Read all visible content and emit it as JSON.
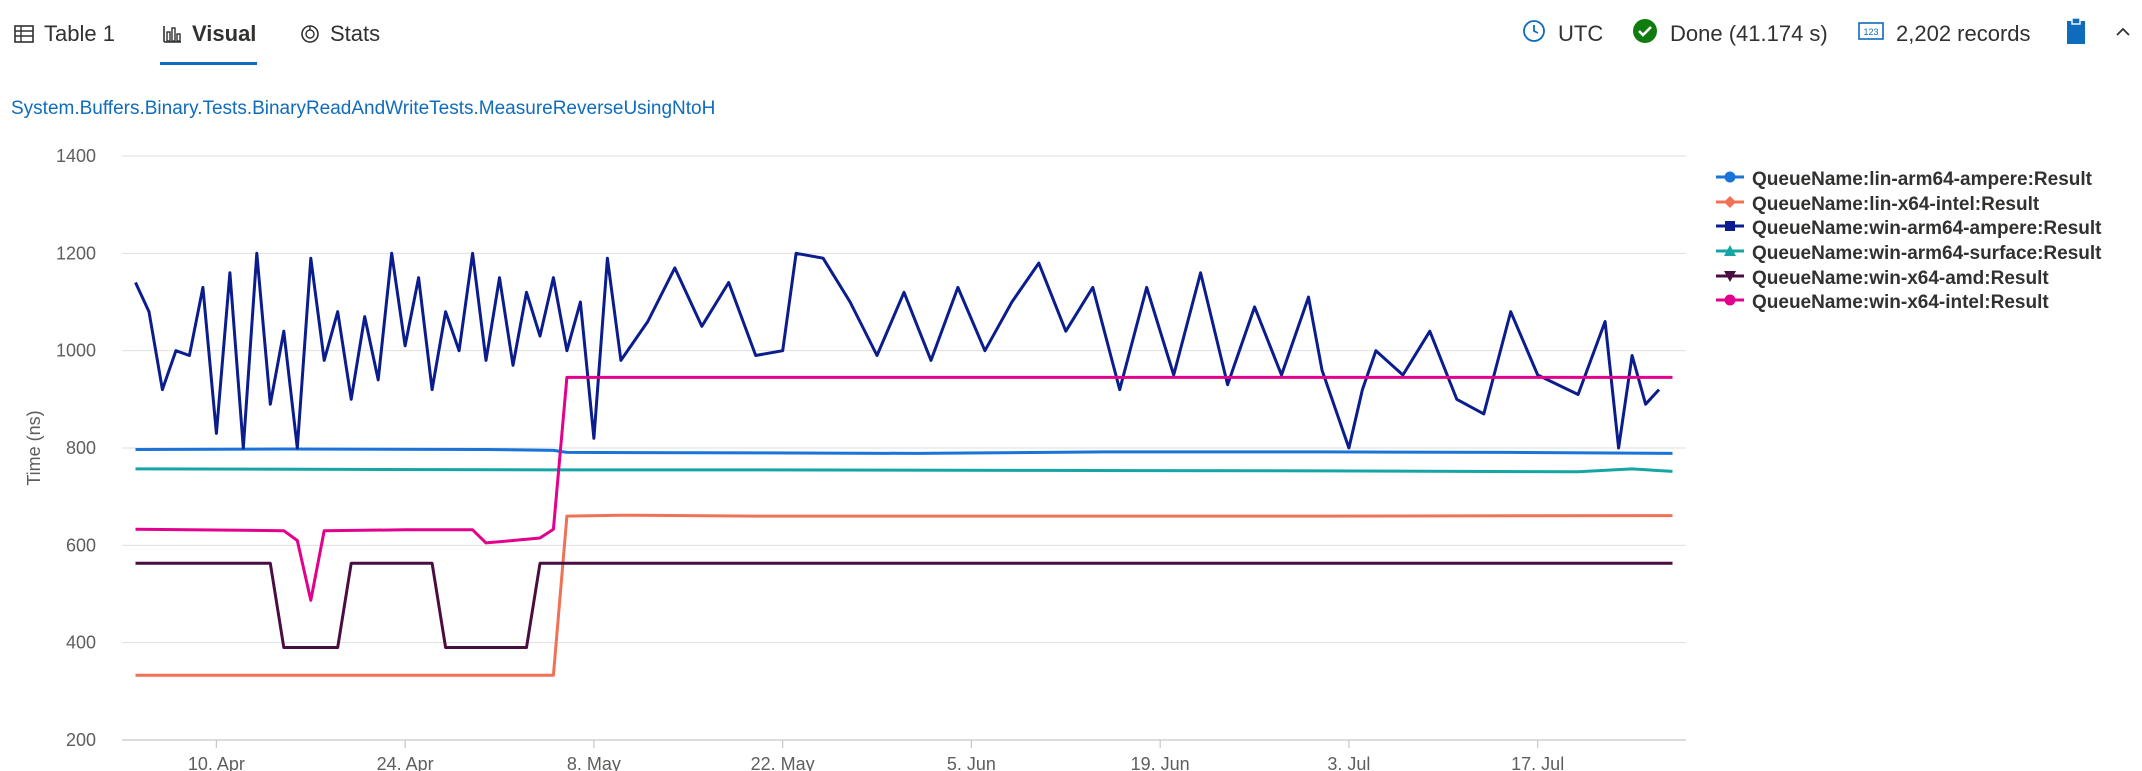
{
  "toolbar": {
    "tabs": [
      {
        "label": "Table 1",
        "icon": "table-icon",
        "active": false
      },
      {
        "label": "Visual",
        "icon": "chart-icon",
        "active": true
      },
      {
        "label": "Stats",
        "icon": "stats-icon",
        "active": false
      }
    ],
    "timezone": "UTC",
    "status": "Done (41.174 s)",
    "records": "2,202 records",
    "accent_color": "#0f6cbd",
    "done_color": "#107c10"
  },
  "query_title": "System.Buffers.Binary.Tests.BinaryReadAndWriteTests.MeasureReverseUsingNtoH",
  "chart_data": {
    "type": "line",
    "title": "System.Buffers.Binary.Tests.BinaryReadAndWriteTests.MeasureReverseUsingNtoH",
    "xlabel": "",
    "ylabel": "Time (ns)",
    "ylim": [
      200,
      1400
    ],
    "yticks": [
      200,
      400,
      600,
      800,
      1000,
      1200,
      1400
    ],
    "xlim": [
      "2023-04-03",
      "2023-07-28"
    ],
    "xticks": [
      "10. Apr",
      "24. Apr",
      "8. May",
      "22. May",
      "5. Jun",
      "19. Jun",
      "3. Jul",
      "17. Jul"
    ],
    "grid": true,
    "legend_position": "top-right",
    "series": [
      {
        "name": "QueueName:lin-arm64-ampere:Result",
        "color": "#1a73d9",
        "marker": "circle",
        "points": [
          [
            "2023-04-04",
            797
          ],
          [
            "2023-04-15",
            798
          ],
          [
            "2023-04-30",
            797
          ],
          [
            "2023-05-05",
            795
          ],
          [
            "2023-05-06",
            791
          ],
          [
            "2023-05-20",
            790
          ],
          [
            "2023-06-01",
            789
          ],
          [
            "2023-06-15",
            792
          ],
          [
            "2023-07-01",
            792
          ],
          [
            "2023-07-15",
            791
          ],
          [
            "2023-07-27",
            789
          ]
        ]
      },
      {
        "name": "QueueName:lin-x64-intel:Result",
        "color": "#f07155",
        "marker": "diamond",
        "points": [
          [
            "2023-04-04",
            333
          ],
          [
            "2023-05-05",
            333
          ],
          [
            "2023-05-06",
            660
          ],
          [
            "2023-05-10",
            662
          ],
          [
            "2023-05-20",
            660
          ],
          [
            "2023-06-10",
            660
          ],
          [
            "2023-07-01",
            660
          ],
          [
            "2023-07-27",
            661
          ]
        ]
      },
      {
        "name": "QueueName:win-arm64-ampere:Result",
        "color": "#0b1d8c",
        "marker": "square",
        "points": [
          [
            "2023-04-04",
            1140
          ],
          [
            "2023-04-05",
            1080
          ],
          [
            "2023-04-06",
            920
          ],
          [
            "2023-04-07",
            1000
          ],
          [
            "2023-04-08",
            990
          ],
          [
            "2023-04-09",
            1130
          ],
          [
            "2023-04-10",
            830
          ],
          [
            "2023-04-11",
            1160
          ],
          [
            "2023-04-12",
            800
          ],
          [
            "2023-04-13",
            1200
          ],
          [
            "2023-04-14",
            890
          ],
          [
            "2023-04-15",
            1040
          ],
          [
            "2023-04-16",
            800
          ],
          [
            "2023-04-17",
            1190
          ],
          [
            "2023-04-18",
            980
          ],
          [
            "2023-04-19",
            1080
          ],
          [
            "2023-04-20",
            900
          ],
          [
            "2023-04-21",
            1070
          ],
          [
            "2023-04-22",
            940
          ],
          [
            "2023-04-23",
            1200
          ],
          [
            "2023-04-24",
            1010
          ],
          [
            "2023-04-25",
            1150
          ],
          [
            "2023-04-26",
            920
          ],
          [
            "2023-04-27",
            1080
          ],
          [
            "2023-04-28",
            1000
          ],
          [
            "2023-04-29",
            1200
          ],
          [
            "2023-04-30",
            980
          ],
          [
            "2023-05-01",
            1150
          ],
          [
            "2023-05-02",
            970
          ],
          [
            "2023-05-03",
            1120
          ],
          [
            "2023-05-04",
            1030
          ],
          [
            "2023-05-05",
            1150
          ],
          [
            "2023-05-06",
            1000
          ],
          [
            "2023-05-07",
            1100
          ],
          [
            "2023-05-08",
            820
          ],
          [
            "2023-05-09",
            1190
          ],
          [
            "2023-05-10",
            980
          ],
          [
            "2023-05-12",
            1060
          ],
          [
            "2023-05-14",
            1170
          ],
          [
            "2023-05-16",
            1050
          ],
          [
            "2023-05-18",
            1140
          ],
          [
            "2023-05-20",
            990
          ],
          [
            "2023-05-22",
            1000
          ],
          [
            "2023-05-23",
            1200
          ],
          [
            "2023-05-25",
            1190
          ],
          [
            "2023-05-27",
            1100
          ],
          [
            "2023-05-29",
            990
          ],
          [
            "2023-05-31",
            1120
          ],
          [
            "2023-06-02",
            980
          ],
          [
            "2023-06-04",
            1130
          ],
          [
            "2023-06-06",
            1000
          ],
          [
            "2023-06-08",
            1100
          ],
          [
            "2023-06-10",
            1180
          ],
          [
            "2023-06-12",
            1040
          ],
          [
            "2023-06-14",
            1130
          ],
          [
            "2023-06-16",
            920
          ],
          [
            "2023-06-18",
            1130
          ],
          [
            "2023-06-20",
            950
          ],
          [
            "2023-06-22",
            1160
          ],
          [
            "2023-06-24",
            930
          ],
          [
            "2023-06-26",
            1090
          ],
          [
            "2023-06-28",
            950
          ],
          [
            "2023-06-30",
            1110
          ],
          [
            "2023-07-01",
            960
          ],
          [
            "2023-07-03",
            800
          ],
          [
            "2023-07-04",
            920
          ],
          [
            "2023-07-05",
            1000
          ],
          [
            "2023-07-07",
            950
          ],
          [
            "2023-07-09",
            1040
          ],
          [
            "2023-07-11",
            900
          ],
          [
            "2023-07-13",
            870
          ],
          [
            "2023-07-15",
            1080
          ],
          [
            "2023-07-17",
            950
          ],
          [
            "2023-07-20",
            910
          ],
          [
            "2023-07-22",
            1060
          ],
          [
            "2023-07-23",
            800
          ],
          [
            "2023-07-24",
            990
          ],
          [
            "2023-07-25",
            890
          ],
          [
            "2023-07-26",
            920
          ]
        ]
      },
      {
        "name": "QueueName:win-arm64-surface:Result",
        "color": "#16a5a5",
        "marker": "triangle",
        "points": [
          [
            "2023-04-04",
            757
          ],
          [
            "2023-04-20",
            756
          ],
          [
            "2023-05-05",
            755
          ],
          [
            "2023-05-20",
            755
          ],
          [
            "2023-06-10",
            754
          ],
          [
            "2023-07-01",
            753
          ],
          [
            "2023-07-20",
            751
          ],
          [
            "2023-07-24",
            757
          ],
          [
            "2023-07-27",
            752
          ]
        ]
      },
      {
        "name": "QueueName:win-x64-amd:Result",
        "color": "#4a0d40",
        "marker": "triangle-down",
        "points": [
          [
            "2023-04-04",
            563
          ],
          [
            "2023-04-14",
            563
          ],
          [
            "2023-04-15",
            390
          ],
          [
            "2023-04-19",
            390
          ],
          [
            "2023-04-20",
            563
          ],
          [
            "2023-04-26",
            563
          ],
          [
            "2023-04-27",
            390
          ],
          [
            "2023-05-03",
            390
          ],
          [
            "2023-05-04",
            563
          ],
          [
            "2023-05-20",
            563
          ],
          [
            "2023-06-10",
            563
          ],
          [
            "2023-07-01",
            563
          ],
          [
            "2023-07-27",
            563
          ]
        ]
      },
      {
        "name": "QueueName:win-x64-intel:Result",
        "color": "#e3008c",
        "marker": "circle",
        "points": [
          [
            "2023-04-04",
            633
          ],
          [
            "2023-04-15",
            630
          ],
          [
            "2023-04-16",
            610
          ],
          [
            "2023-04-17",
            487
          ],
          [
            "2023-04-18",
            630
          ],
          [
            "2023-04-24",
            632
          ],
          [
            "2023-04-29",
            632
          ],
          [
            "2023-04-30",
            605
          ],
          [
            "2023-05-02",
            610
          ],
          [
            "2023-05-04",
            615
          ],
          [
            "2023-05-05",
            633
          ],
          [
            "2023-05-06",
            945
          ],
          [
            "2023-05-20",
            945
          ],
          [
            "2023-06-10",
            945
          ],
          [
            "2023-07-01",
            945
          ],
          [
            "2023-07-27",
            945
          ]
        ]
      }
    ]
  }
}
